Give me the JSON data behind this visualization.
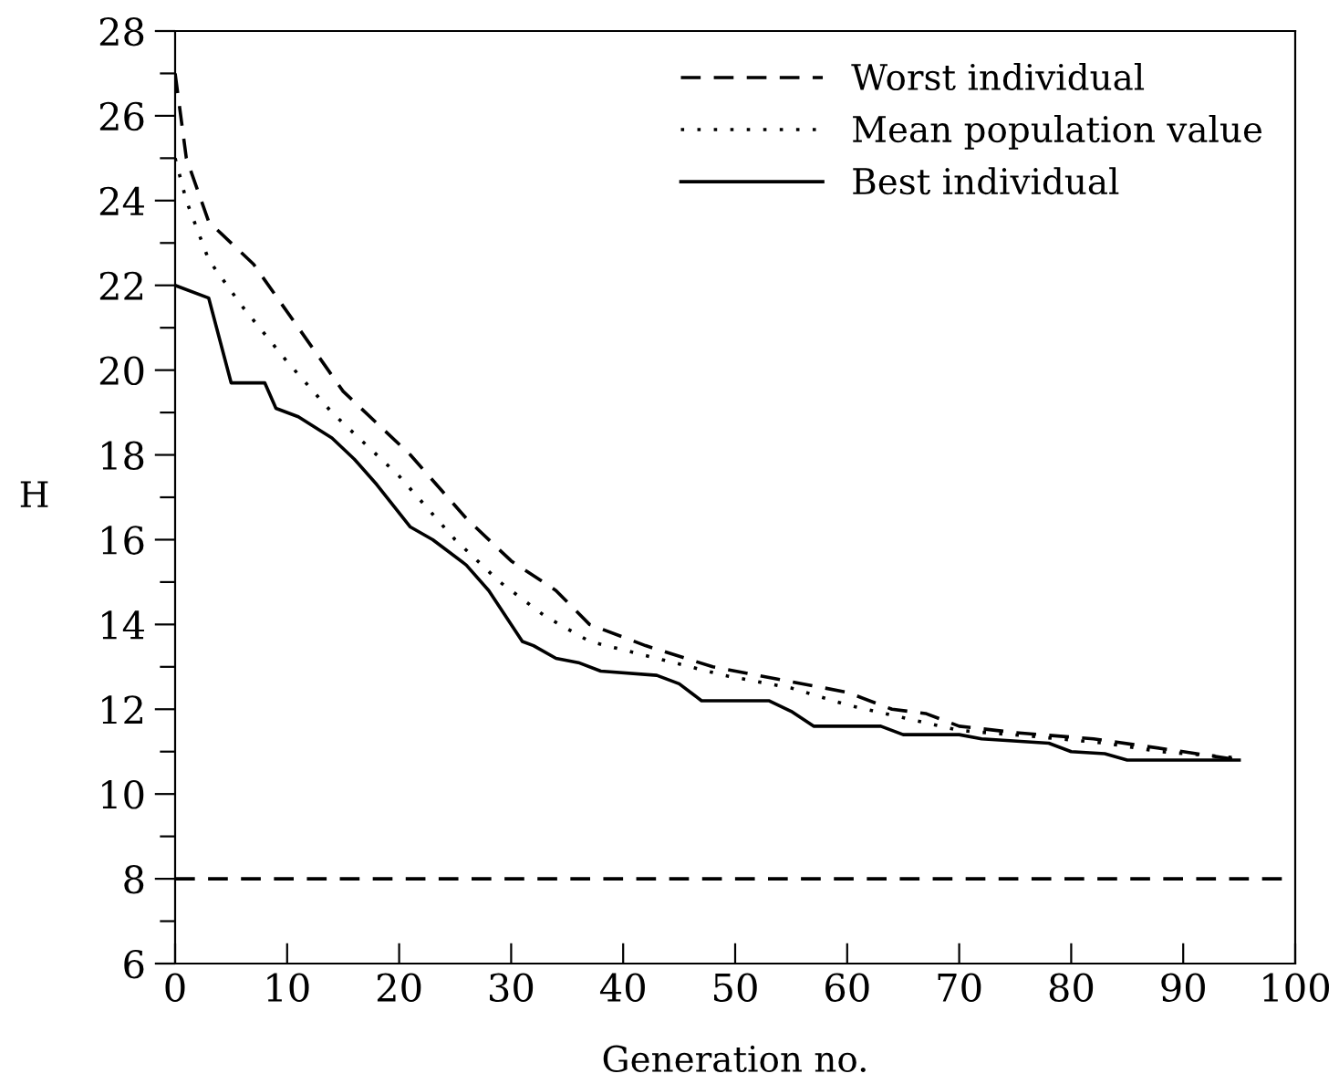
{
  "chart_data": {
    "type": "line",
    "xlabel": "Generation no.",
    "ylabel": "H",
    "xlim": [
      0,
      100
    ],
    "ylim": [
      6,
      28
    ],
    "xticks": [
      0,
      10,
      20,
      30,
      40,
      50,
      60,
      70,
      80,
      90,
      100
    ],
    "yticks": [
      6,
      {
        "value": 7,
        "label": null
      },
      8,
      {
        "value": 9,
        "label": null
      },
      10,
      {
        "value": 11,
        "label": null
      },
      12,
      {
        "value": 13,
        "label": null
      },
      14,
      {
        "value": 15,
        "label": null
      },
      16,
      {
        "value": 17,
        "label": null
      },
      18,
      {
        "value": 19,
        "label": null
      },
      20,
      {
        "value": 21,
        "label": null
      },
      22,
      {
        "value": 23,
        "label": null
      },
      24,
      {
        "value": 25,
        "label": null
      },
      26,
      {
        "value": 27,
        "label": null
      },
      28
    ],
    "grid": false,
    "legend": "top right",
    "marker": "none",
    "series": [
      {
        "name": "Worst individual",
        "color": "#000000",
        "line_style": "dashed",
        "x": [
          0,
          1,
          3,
          7,
          11,
          15,
          21,
          26,
          30,
          34,
          37,
          42,
          48,
          54,
          60,
          64,
          67,
          70,
          75,
          82,
          90,
          95
        ],
        "values": [
          27,
          25,
          23.5,
          22.5,
          21,
          19.5,
          18,
          16.5,
          15.5,
          14.8,
          14,
          13.5,
          13,
          12.7,
          12.4,
          12,
          11.9,
          11.6,
          11.45,
          11.3,
          11,
          10.8
        ]
      },
      {
        "name": "Mean population value",
        "color": "#000000",
        "line_style": "dotted",
        "x": [
          0,
          1,
          3,
          6,
          10,
          14,
          20,
          25,
          29,
          33,
          37,
          43,
          49,
          55,
          60,
          65,
          70,
          77,
          83,
          88,
          95
        ],
        "values": [
          25,
          24,
          22.6,
          21.5,
          20.2,
          19,
          17.5,
          16,
          15,
          14.2,
          13.6,
          13.2,
          12.8,
          12.5,
          12.1,
          11.8,
          11.5,
          11.35,
          11.2,
          11,
          10.85
        ]
      },
      {
        "name": "Best individual",
        "color": "#000000",
        "line_style": "solid",
        "x": [
          0,
          3,
          5,
          8,
          9,
          11,
          14,
          16,
          18,
          21,
          23,
          26,
          28,
          31,
          32,
          34,
          36,
          38,
          43,
          45,
          47,
          53,
          55,
          57,
          63,
          65,
          70,
          72,
          78,
          80,
          83,
          85,
          95
        ],
        "values": [
          22,
          21.7,
          19.7,
          19.7,
          19.1,
          18.9,
          18.4,
          17.9,
          17.3,
          16.3,
          16,
          15.4,
          14.8,
          13.6,
          13.5,
          13.2,
          13.1,
          12.9,
          12.8,
          12.6,
          12.2,
          12.2,
          11.95,
          11.6,
          11.6,
          11.4,
          11.4,
          11.3,
          11.2,
          11,
          10.95,
          10.8,
          10.8
        ]
      }
    ],
    "ref_lines": [
      {
        "axis": "y",
        "value": 8,
        "color": "#000000",
        "line_style": "dashed"
      }
    ]
  }
}
